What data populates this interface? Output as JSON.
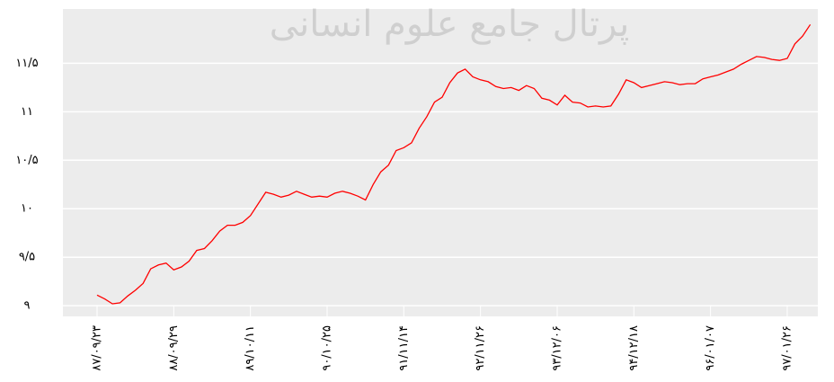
{
  "chart_data": {
    "type": "line",
    "watermark": "پرتال جامع علوم انسانی",
    "categories": [
      "۸۷/۰۹/۲۳",
      null,
      null,
      null,
      null,
      null,
      null,
      null,
      null,
      null,
      "۸۸/۰۹/۲۹",
      null,
      null,
      null,
      null,
      null,
      null,
      null,
      null,
      null,
      "۸۹/۱۰/۱۱",
      null,
      null,
      null,
      null,
      null,
      null,
      null,
      null,
      null,
      "۹۰/۱۰/۲۵",
      null,
      null,
      null,
      null,
      null,
      null,
      null,
      null,
      null,
      "۹۱/۱۱/۱۴",
      null,
      null,
      null,
      null,
      null,
      null,
      null,
      null,
      null,
      "۹۲/۱۱/۲۶",
      null,
      null,
      null,
      null,
      null,
      null,
      null,
      null,
      null,
      "۹۳/۱۲/۰۶",
      null,
      null,
      null,
      null,
      null,
      null,
      null,
      null,
      null,
      "۹۴/۱۲/۱۸",
      null,
      null,
      null,
      null,
      null,
      null,
      null,
      null,
      null,
      "۹۶/۰۱/۰۷",
      null,
      null,
      null,
      null,
      null,
      null,
      null,
      null,
      null,
      "۹۷/۰۱/۲۶",
      null,
      null,
      null
    ],
    "series": [
      {
        "color": "#ff0000",
        "values": [
          9.11,
          9.07,
          9.02,
          9.03,
          9.1,
          9.16,
          9.23,
          9.38,
          9.42,
          9.44,
          9.37,
          9.4,
          9.46,
          9.57,
          9.59,
          9.67,
          9.77,
          9.83,
          9.83,
          9.86,
          9.93,
          10.05,
          10.17,
          10.15,
          10.12,
          10.14,
          10.18,
          10.15,
          10.12,
          10.13,
          10.12,
          10.16,
          10.18,
          10.16,
          10.13,
          10.09,
          10.25,
          10.38,
          10.45,
          10.6,
          10.63,
          10.68,
          10.83,
          10.95,
          11.1,
          11.15,
          11.3,
          11.4,
          11.44,
          11.36,
          11.33,
          11.31,
          11.26,
          11.24,
          11.25,
          11.22,
          11.27,
          11.24,
          11.14,
          11.12,
          11.07,
          11.17,
          11.1,
          11.09,
          11.05,
          11.06,
          11.05,
          11.06,
          11.18,
          11.33,
          11.3,
          11.25,
          11.27,
          11.29,
          11.31,
          11.3,
          11.28,
          11.29,
          11.29,
          11.34,
          11.36,
          11.38,
          11.41,
          11.44,
          11.49,
          11.53,
          11.57,
          11.56,
          11.54,
          11.53,
          11.55,
          11.7,
          11.78,
          11.9
        ]
      }
    ],
    "ylim": [
      8.89,
      12.06
    ],
    "yticks": [
      {
        "value": 9,
        "label": "۹"
      },
      {
        "value": 9.5,
        "label": "۹/۵"
      },
      {
        "value": 10,
        "label": "۱۰"
      },
      {
        "value": 10.5,
        "label": "۱۰/۵"
      },
      {
        "value": 11,
        "label": "۱۱"
      },
      {
        "value": 11.5,
        "label": "۱۱/۵"
      }
    ],
    "grid": true
  }
}
